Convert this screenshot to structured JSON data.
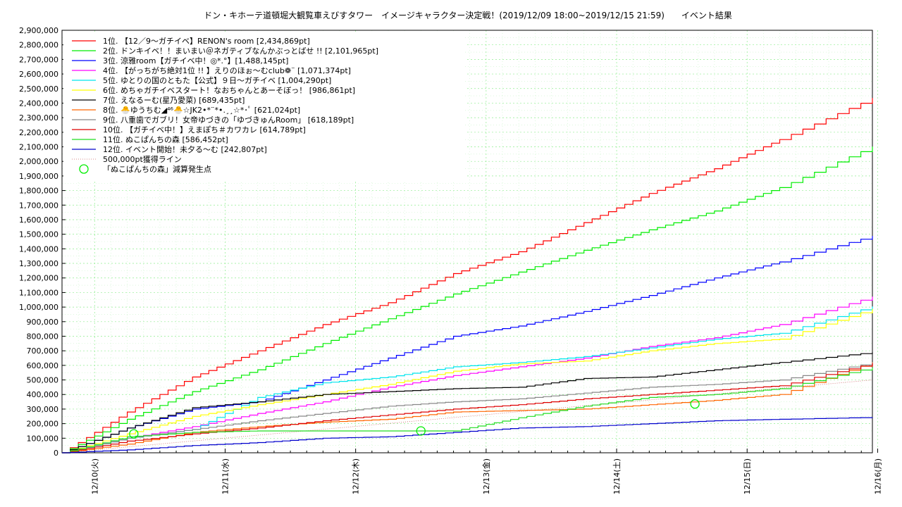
{
  "chart_data": {
    "type": "line",
    "title": "ドン・キホーテ道頓堀大観覧車えびすタワー　イメージキャラクター決定戦！(2019/12/09 18:00~2019/12/15 21:59)　　イベント結果",
    "xlabel": "",
    "ylabel": "",
    "xlim": [
      0,
      6.21
    ],
    "ylim": [
      0,
      2900000
    ],
    "x_ticks": [
      "12/10(火)",
      "12/11(水)",
      "12/12(木)",
      "12/13(金)",
      "12/14(土)",
      "12/15(日)",
      "12/16(月)"
    ],
    "y_ticks": [
      "0",
      "100,000",
      "200,000",
      "300,000",
      "400,000",
      "500,000",
      "600,000",
      "700,000",
      "800,000",
      "900,000",
      "1,000,000",
      "1,100,000",
      "1,200,000",
      "1,300,000",
      "1,400,000",
      "1,500,000",
      "1,600,000",
      "1,700,000",
      "1,800,000",
      "1,900,000",
      "2,000,000",
      "2,100,000",
      "2,200,000",
      "2,300,000",
      "2,400,000",
      "2,500,000",
      "2,600,000",
      "2,700,000",
      "2,800,000",
      "2,900,000"
    ],
    "grid": true,
    "legend_position": "top-left",
    "series": [
      {
        "name": "1位. 【12／9～ガチイベ】RENON's room [2,434,869pt]",
        "color": "#ff0000",
        "x": [
          0,
          0.5,
          1,
          1.5,
          2,
          2.5,
          3,
          3.5,
          4,
          4.5,
          5,
          5.5,
          6.21
        ],
        "y": [
          0,
          280000,
          520000,
          700000,
          880000,
          1030000,
          1230000,
          1380000,
          1580000,
          1780000,
          1950000,
          2150000,
          2434869
        ]
      },
      {
        "name": "2位. ドンキイベ！！まいまい＠ネガティブなんかぶっとばせ !! [2,101,965pt]",
        "color": "#00ee00",
        "x": [
          0,
          0.5,
          1,
          1.5,
          2,
          2.5,
          3,
          3.5,
          4,
          4.5,
          5,
          5.5,
          6.21
        ],
        "y": [
          0,
          230000,
          420000,
          570000,
          750000,
          920000,
          1090000,
          1240000,
          1390000,
          1530000,
          1660000,
          1820000,
          2101965
        ]
      },
      {
        "name": "3位. 涼雅room【ガチイベ中！◎*.°】[1,488,145pt]",
        "color": "#0000ff",
        "x": [
          0,
          0.5,
          1,
          1.5,
          2,
          2.5,
          3,
          3.5,
          4,
          4.5,
          5,
          5.5,
          6.21
        ],
        "y": [
          0,
          170000,
          300000,
          350000,
          500000,
          650000,
          800000,
          870000,
          970000,
          1080000,
          1200000,
          1310000,
          1488145
        ]
      },
      {
        "name": "4位. 【がっちがち絶対1位 !! 】えりのほぉ～むclub❁¨ [1,071,374pt]",
        "color": "#ff00ff",
        "x": [
          0,
          0.5,
          1,
          1.5,
          2,
          2.5,
          3,
          3.5,
          4,
          4.5,
          5,
          5.5,
          6.21
        ],
        "y": [
          0,
          100000,
          180000,
          270000,
          350000,
          450000,
          530000,
          590000,
          650000,
          730000,
          790000,
          880000,
          1071374
        ]
      },
      {
        "name": "5位. ゆとりの国のともた【公式】９日～ガチイベ [1,004,290pt]",
        "color": "#00e5ee",
        "x": [
          0,
          0.5,
          1,
          1.5,
          2,
          2.5,
          3,
          3.5,
          4,
          4.5,
          5,
          5.5,
          6.21
        ],
        "y": [
          0,
          100000,
          160000,
          380000,
          480000,
          520000,
          590000,
          620000,
          660000,
          720000,
          780000,
          820000,
          1004290
        ]
      },
      {
        "name": "6位. めちゃガチイベスタート！なおちゃんとあーそぼっ！ [986,861pt]",
        "color": "#ffff00",
        "x": [
          0,
          0.5,
          1,
          1.5,
          2,
          2.5,
          3,
          3.5,
          4,
          4.5,
          5,
          5.5,
          6.21
        ],
        "y": [
          0,
          130000,
          250000,
          330000,
          400000,
          470000,
          560000,
          610000,
          630000,
          700000,
          750000,
          780000,
          986861
        ]
      },
      {
        "name": "7位. えなるーむ(星乃愛菜) [689,435pt]",
        "color": "#000000",
        "x": [
          0,
          0.5,
          1,
          1.5,
          2,
          2.5,
          3,
          3.5,
          4,
          4.5,
          5,
          5.5,
          6.21
        ],
        "y": [
          0,
          170000,
          310000,
          350000,
          400000,
          420000,
          440000,
          450000,
          510000,
          520000,
          570000,
          620000,
          689435
        ]
      },
      {
        "name": "8位. 🐣ゆうちむ◢⁴⁶🐣☆JK2•*¨*•.¸¸☆*･ﾟ [621,024pt]",
        "color": "#ff6600",
        "x": [
          0,
          0.5,
          1,
          1.5,
          2,
          2.5,
          3,
          3.5,
          4,
          4.5,
          5,
          5.5,
          6.21
        ],
        "y": [
          0,
          60000,
          140000,
          180000,
          210000,
          230000,
          280000,
          290000,
          300000,
          330000,
          360000,
          400000,
          621024
        ]
      },
      {
        "name": "9位. 八重歯でガブリ！女帝ゆづきの「ゆづきゅんRoom」 [618,189pt]",
        "color": "#888888",
        "x": [
          0,
          0.5,
          1,
          1.5,
          2,
          2.5,
          3,
          3.5,
          4,
          4.5,
          5,
          5.5,
          6.21
        ],
        "y": [
          0,
          100000,
          160000,
          220000,
          270000,
          320000,
          350000,
          370000,
          410000,
          450000,
          470000,
          500000,
          618189
        ]
      },
      {
        "name": "10位. 【ガチイベ中！】えまぽち＃カワカレ [614,789pt]",
        "color": "#dd0000",
        "x": [
          0,
          0.5,
          1,
          1.5,
          2,
          2.5,
          3,
          3.5,
          4,
          4.5,
          5,
          5.5,
          6.21
        ],
        "y": [
          0,
          80000,
          130000,
          170000,
          220000,
          260000,
          300000,
          330000,
          370000,
          400000,
          430000,
          460000,
          614789
        ]
      },
      {
        "name": "11位. ぬこぱんちの森 [586,452pt]",
        "color": "#22dd22",
        "x": [
          0,
          0.5,
          1,
          1.5,
          2,
          2.5,
          3,
          3.5,
          4,
          4.5,
          5,
          5.5,
          6.21
        ],
        "y": [
          0,
          110000,
          140000,
          150000,
          150000,
          150000,
          150000,
          240000,
          320000,
          380000,
          400000,
          440000,
          586452
        ]
      },
      {
        "name": "12位. イベント開始！未夕る～む [242,807pt]",
        "color": "#0000cc",
        "x": [
          0,
          0.5,
          1,
          1.5,
          2,
          2.5,
          3,
          3.5,
          4,
          4.5,
          5,
          5.5,
          6.21
        ],
        "y": [
          0,
          20000,
          50000,
          70000,
          100000,
          110000,
          140000,
          170000,
          180000,
          200000,
          220000,
          230000,
          242807
        ]
      }
    ],
    "reference_line": {
      "name": "500,000pt獲得ライン",
      "color": "#cc6666",
      "x": [
        0,
        6.21
      ],
      "y": [
        0,
        500000
      ]
    },
    "markers": {
      "name": "「ぬこぱんちの森」減算発生点",
      "color": "#00ee00",
      "points": [
        {
          "x": 0.55,
          "y": 130000
        },
        {
          "x": 2.75,
          "y": 150000
        },
        {
          "x": 4.85,
          "y": 335000
        }
      ]
    }
  }
}
